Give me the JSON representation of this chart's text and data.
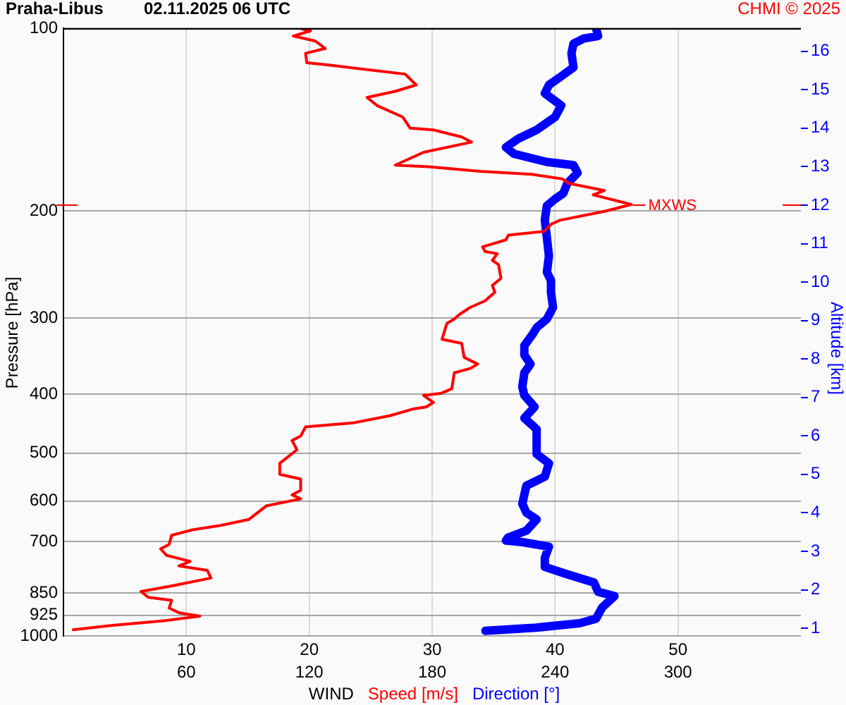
{
  "chart_data": {
    "type": "line",
    "title": "Praha-Libus",
    "subtitle": "02.11.2025 06 UTC",
    "xlabel": "WIND",
    "ylabel": "Pressure [hPa]",
    "y2label": "Altitude [km]",
    "annotations": [
      "CHMI © 2025",
      {
        "text": "MXWS",
        "x": 46.2,
        "y": 195
      }
    ],
    "series": [
      {
        "name": "Speed [m/s]",
        "color": "#ff0000",
        "x": [
          19.2,
          20.1,
          18.7,
          20.5,
          21.3,
          19.7,
          19.8,
          21.6,
          27.8,
          28.7,
          27.0,
          24.7,
          25.5,
          27.6,
          28.2,
          30.1,
          32.4,
          33.2,
          29.3,
          27.0,
          29.7,
          33.9,
          38.1,
          40.6,
          41.1,
          44.0,
          43.1,
          46.2,
          44.1,
          40.4,
          39.7,
          39.1,
          36.2,
          36.0,
          34.1,
          34.3,
          35.3,
          34.9,
          35.4,
          35.6,
          34.9,
          35.1,
          34.3,
          33.1,
          32.2,
          31.8,
          31.2,
          30.8,
          32.4,
          32.6,
          33.7,
          33.1,
          31.8,
          31.6,
          30.7,
          29.3,
          30.1,
          29.5,
          28.5,
          26.6,
          23.6,
          19.7,
          19.3,
          18.6,
          19.0,
          17.6,
          17.6,
          19.3,
          19.3,
          18.6,
          19.3,
          16.5,
          15.1,
          12.8,
          10.5,
          8.8,
          8.6,
          7.9,
          8.4,
          10.3,
          9.4,
          11.7,
          12.0,
          9.0,
          6.3,
          6.9,
          8.8,
          8.6,
          9.4,
          11.1,
          8.2,
          4.0,
          0.8
        ],
        "values": [
          100,
          101,
          103,
          105,
          108,
          110,
          114,
          115,
          119,
          124,
          127,
          130,
          134,
          140,
          146,
          147,
          151,
          154,
          160,
          168,
          169,
          172,
          174,
          177,
          180,
          185,
          188,
          195,
          200,
          207,
          210,
          216,
          219,
          223,
          229,
          233,
          235,
          241,
          245,
          258,
          265,
          272,
          281,
          288,
          296,
          301,
          306,
          325,
          330,
          348,
          357,
          363,
          369,
          392,
          399,
          402,
          413,
          420,
          423,
          434,
          446,
          453,
          469,
          477,
          494,
          520,
          542,
          552,
          576,
          586,
          595,
          611,
          643,
          658,
          669,
          683,
          707,
          719,
          737,
          754,
          767,
          780,
          803,
          826,
          845,
          864,
          874,
          900,
          916,
          928,
          944,
          961,
          977
        ]
      },
      {
        "name": "Direction [°]",
        "color": "#0000ff",
        "axis": "x2",
        "x": [
          260,
          261,
          254,
          249,
          248,
          249,
          243,
          237,
          235,
          243,
          240,
          231,
          222,
          216,
          220,
          236,
          249,
          251,
          246,
          244,
          240,
          236,
          235,
          236,
          237,
          236,
          238,
          238,
          239,
          236,
          231,
          229,
          225,
          225,
          228,
          225,
          224,
          225,
          230,
          225,
          231,
          231,
          237,
          235,
          226,
          224,
          226,
          231,
          226,
          217,
          216,
          224,
          237,
          235,
          235,
          245,
          259,
          261,
          269,
          263,
          260,
          252,
          231,
          206
        ],
        "values": [
          100,
          103,
          104,
          106,
          110,
          116,
          120,
          124,
          128,
          134,
          140,
          147,
          152,
          157,
          161,
          166,
          168,
          173,
          180,
          187,
          191,
          196,
          207,
          221,
          237,
          252,
          260,
          272,
          288,
          301,
          311,
          319,
          333,
          345,
          357,
          369,
          389,
          402,
          420,
          438,
          457,
          502,
          520,
          547,
          566,
          606,
          627,
          643,
          671,
          689,
          697,
          701,
          713,
          744,
          770,
          790,
          817,
          846,
          860,
          898,
          937,
          953,
          969,
          981
        ]
      }
    ],
    "xlim": [
      0,
      60
    ],
    "xticks": [
      10,
      20,
      30,
      40,
      50
    ],
    "x2lim": [
      0,
      360
    ],
    "x2ticks": [
      60,
      120,
      180,
      240,
      300
    ],
    "ylim": [
      1000,
      100
    ],
    "yticks": [
      100,
      200,
      300,
      400,
      500,
      600,
      700,
      850,
      925,
      1000
    ],
    "y2lim": [
      0.8,
      16.6
    ],
    "y2ticks": [
      1,
      2,
      3,
      4,
      5,
      6,
      7,
      8,
      9,
      10,
      11,
      12,
      13,
      14,
      15,
      16
    ],
    "log": "y",
    "grid": true,
    "legend": "bottom"
  }
}
